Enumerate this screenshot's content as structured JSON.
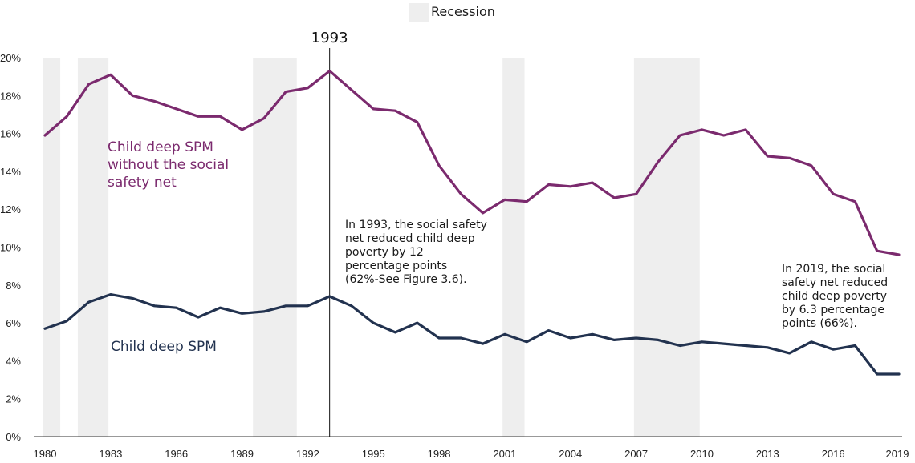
{
  "chart_data": {
    "type": "line",
    "legend": {
      "label": "Recession",
      "color": "#eeeeee",
      "placement": "top-center"
    },
    "x": [
      1980,
      1981,
      1982,
      1983,
      1984,
      1985,
      1986,
      1987,
      1988,
      1989,
      1990,
      1991,
      1992,
      1993,
      1994,
      1995,
      1996,
      1997,
      1998,
      1999,
      2000,
      2001,
      2002,
      2003,
      2004,
      2005,
      2006,
      2007,
      2008,
      2009,
      2010,
      2011,
      2012,
      2013,
      2014,
      2015,
      2016,
      2017,
      2018,
      2019
    ],
    "xlim": [
      1979.5,
      2019.5
    ],
    "ylim": [
      0,
      20
    ],
    "x_tick_labels": [
      "1980",
      "1983",
      "1986",
      "1989",
      "1992",
      "1995",
      "1998",
      "2001",
      "2004",
      "2007",
      "2010",
      "2013",
      "2016",
      "2019"
    ],
    "x_tick_values": [
      1980,
      1983,
      1986,
      1989,
      1992,
      1995,
      1998,
      2001,
      2004,
      2007,
      2010,
      2013,
      2016,
      2019
    ],
    "y_tick_labels": [
      "0%",
      "2%",
      "4%",
      "6%",
      "8%",
      "10%",
      "12%",
      "14%",
      "16%",
      "18%",
      "20%"
    ],
    "y_tick_values": [
      0,
      2,
      4,
      6,
      8,
      10,
      12,
      14,
      16,
      18,
      20
    ],
    "recessions": [
      [
        1979.9,
        1980.7
      ],
      [
        1981.5,
        1982.9
      ],
      [
        1989.5,
        1991.5
      ],
      [
        2000.9,
        2001.9
      ],
      [
        2006.9,
        2009.9
      ]
    ],
    "series": [
      {
        "name": "Child deep SPM without the social safety net",
        "label_lines": [
          "Child deep SPM",
          "without the social",
          "safety net"
        ],
        "color": "#7b2a6e",
        "values": [
          15.9,
          16.9,
          18.6,
          19.1,
          18.0,
          17.7,
          17.3,
          16.9,
          16.9,
          16.2,
          16.8,
          18.2,
          18.4,
          19.3,
          18.3,
          17.3,
          17.2,
          16.6,
          14.3,
          12.8,
          11.8,
          12.5,
          12.4,
          13.3,
          13.2,
          13.4,
          12.6,
          12.8,
          14.5,
          15.9,
          16.2,
          15.9,
          16.2,
          14.8,
          14.7,
          14.3,
          12.8,
          12.4,
          9.8,
          9.6
        ]
      },
      {
        "name": "Child deep SPM",
        "label_lines": [
          "Child deep SPM"
        ],
        "color": "#22324f",
        "values": [
          5.7,
          6.1,
          7.1,
          7.5,
          7.3,
          6.9,
          6.8,
          6.3,
          6.8,
          6.5,
          6.6,
          6.9,
          6.9,
          7.4,
          6.9,
          6.0,
          5.5,
          6.0,
          5.2,
          5.2,
          4.9,
          5.4,
          5.0,
          5.6,
          5.2,
          5.4,
          5.1,
          5.2,
          5.1,
          4.8,
          5.0,
          4.9,
          4.8,
          4.7,
          4.4,
          5.0,
          4.6,
          4.8,
          3.3,
          3.3
        ]
      }
    ],
    "marker": {
      "year": 1993,
      "label": "1993"
    },
    "annotations": [
      {
        "id": "annot-1993",
        "lines": [
          "In 1993, the social safety",
          "net reduced child deep",
          "poverty by 12",
          "percentage points",
          "(62%-See Figure 3.6)."
        ]
      },
      {
        "id": "annot-2019",
        "lines": [
          "In 2019, the social",
          "safety net reduced",
          "child deep poverty",
          "by 6.3 percentage",
          "points (66%)."
        ]
      }
    ]
  }
}
